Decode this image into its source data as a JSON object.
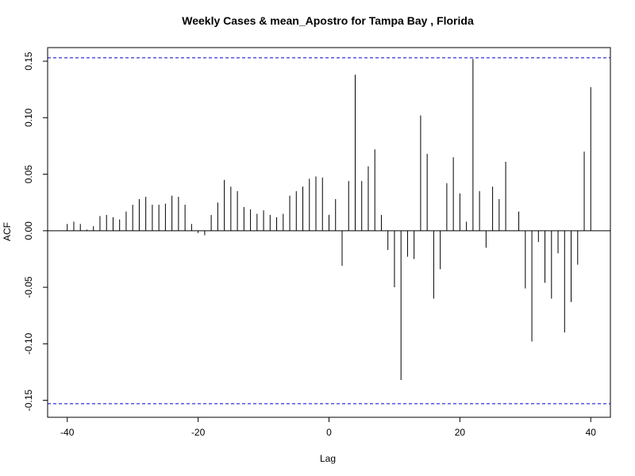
{
  "chart_data": {
    "type": "bar",
    "title": "Weekly Cases & mean_Apostro for Tampa Bay , Florida",
    "xlabel": "Lag",
    "ylabel": "ACF",
    "xlim": [
      -43,
      43
    ],
    "ylim": [
      -0.165,
      0.162
    ],
    "x_ticks": [
      -40,
      -20,
      0,
      20,
      40
    ],
    "y_ticks": [
      -0.15,
      -0.1,
      -0.05,
      0.0,
      0.05,
      0.1,
      0.15
    ],
    "y_tick_labels": [
      "-0.15",
      "-0.10",
      "-0.05",
      "0.00",
      "0.05",
      "0.10",
      "0.15"
    ],
    "confidence_bound": 0.153,
    "confidence_line_color": "#0000cc",
    "bar_color": "#000000",
    "grid": false,
    "x": [
      -40,
      -39,
      -38,
      -37,
      -36,
      -35,
      -34,
      -33,
      -32,
      -31,
      -30,
      -29,
      -28,
      -27,
      -26,
      -25,
      -24,
      -23,
      -22,
      -21,
      -20,
      -19,
      -18,
      -17,
      -16,
      -15,
      -14,
      -13,
      -12,
      -11,
      -10,
      -9,
      -8,
      -7,
      -6,
      -5,
      -4,
      -3,
      -2,
      -1,
      0,
      1,
      2,
      3,
      4,
      5,
      6,
      7,
      8,
      9,
      10,
      11,
      12,
      13,
      14,
      15,
      16,
      17,
      18,
      19,
      20,
      21,
      22,
      23,
      24,
      25,
      26,
      27,
      28,
      29,
      30,
      31,
      32,
      33,
      34,
      35,
      36,
      37,
      38,
      39,
      40
    ],
    "values": [
      0.006,
      0.008,
      0.006,
      0.001,
      0.004,
      0.013,
      0.014,
      0.012,
      0.01,
      0.017,
      0.023,
      0.028,
      0.03,
      0.023,
      0.023,
      0.024,
      0.031,
      0.03,
      0.023,
      0.006,
      -0.002,
      -0.004,
      0.014,
      0.025,
      0.045,
      0.039,
      0.035,
      0.021,
      0.019,
      0.015,
      0.018,
      0.014,
      0.012,
      0.015,
      0.031,
      0.035,
      0.039,
      0.046,
      0.048,
      0.047,
      0.014,
      0.028,
      -0.031,
      0.044,
      0.138,
      0.044,
      0.057,
      0.072,
      0.014,
      -0.017,
      -0.05,
      -0.132,
      -0.023,
      -0.025,
      0.102,
      0.068,
      -0.06,
      -0.034,
      0.042,
      0.065,
      0.033,
      0.008,
      0.152,
      0.035,
      -0.015,
      0.039,
      0.028,
      0.061,
      0.0,
      0.017,
      -0.051,
      -0.098,
      -0.01,
      -0.046,
      -0.06,
      -0.02,
      -0.09,
      -0.063,
      -0.03,
      0.07,
      0.127
    ]
  }
}
